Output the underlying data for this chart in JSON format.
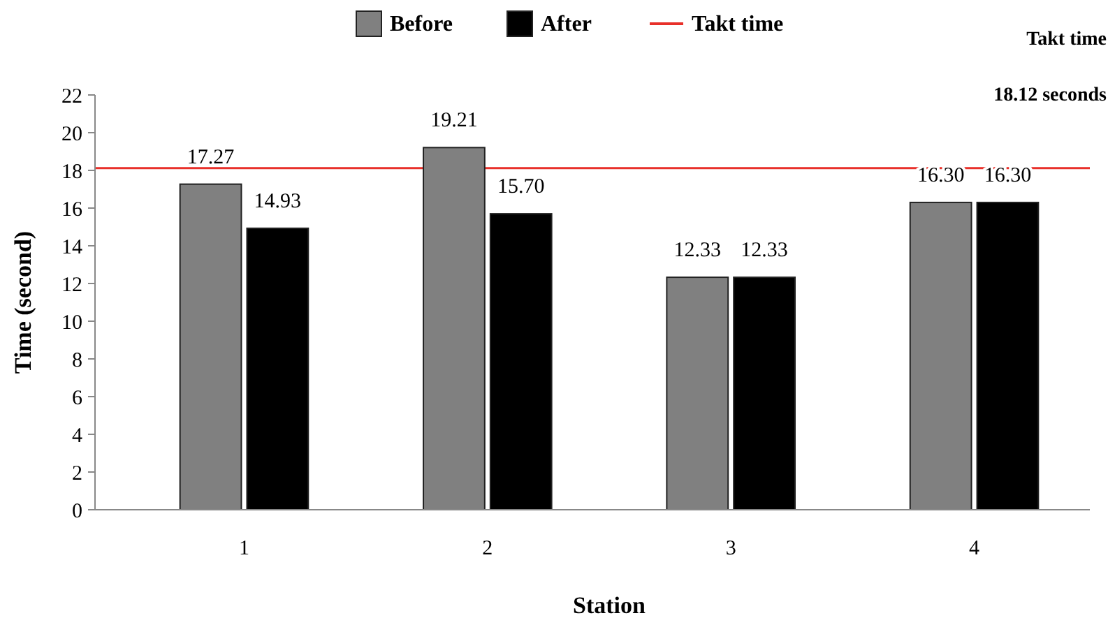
{
  "chart_data": {
    "type": "bar",
    "xlabel": "Station",
    "ylabel": "Time (second)",
    "categories": [
      "1",
      "2",
      "3",
      "4"
    ],
    "series": [
      {
        "name": "Before",
        "color": "#808080",
        "values": [
          17.27,
          19.21,
          12.33,
          16.3
        ],
        "value_labels": [
          "17.27",
          "19.21",
          "12.33",
          "16.30"
        ]
      },
      {
        "name": "After",
        "color": "#000000",
        "values": [
          14.93,
          15.7,
          12.33,
          16.3
        ],
        "value_labels": [
          "14.93",
          "15.70",
          "12.33",
          "16.30"
        ]
      }
    ],
    "ylim": [
      0,
      22
    ],
    "yticks": [
      0,
      2,
      4,
      6,
      8,
      10,
      12,
      14,
      16,
      18,
      20,
      22
    ],
    "ref_lines": [
      {
        "axis": "y",
        "value": 18.12,
        "label": "Takt time",
        "color": "#e8302a"
      }
    ],
    "annotations": [
      "Takt time",
      "18.12 seconds"
    ],
    "legend": "top",
    "grid": false
  }
}
